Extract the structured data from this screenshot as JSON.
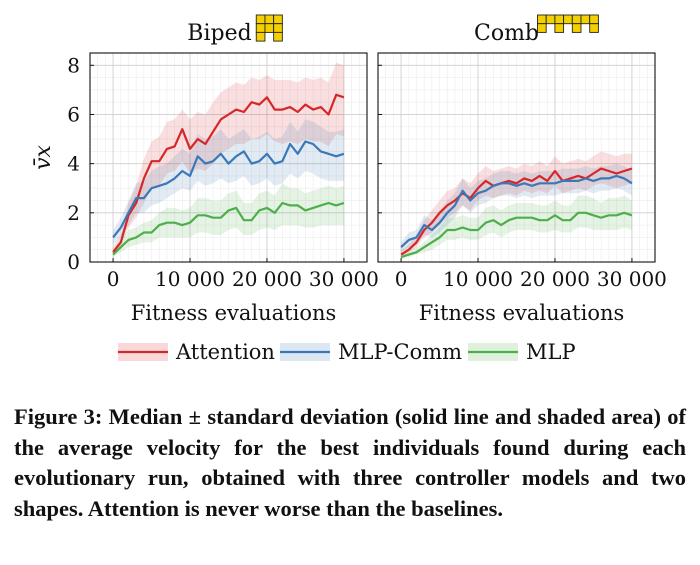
{
  "chart_data": [
    {
      "type": "line",
      "title": "Biped",
      "xlabel": "Fitness evaluations",
      "ylabel": "v̄x",
      "xlim": [
        -3000,
        33000
      ],
      "ylim": [
        0,
        8.5
      ],
      "x_ticks": [
        0,
        10000,
        20000,
        30000
      ],
      "x_tick_labels": [
        "0",
        "10 000",
        "20 000",
        "30 000"
      ],
      "y_ticks": [
        0,
        2,
        4,
        6,
        8
      ],
      "y_tick_labels": [
        "0",
        "2",
        "4",
        "6",
        "8"
      ],
      "grid": true,
      "shape": {
        "rows": [
          [
            1,
            1,
            1
          ],
          [
            1,
            1,
            1
          ],
          [
            1,
            0,
            1
          ]
        ]
      },
      "x": [
        0,
        1000,
        2000,
        3000,
        4000,
        5000,
        6000,
        7000,
        8000,
        9000,
        10000,
        11000,
        12000,
        13000,
        14000,
        15000,
        16000,
        17000,
        18000,
        19000,
        20000,
        21000,
        22000,
        23000,
        24000,
        25000,
        26000,
        27000,
        28000,
        29000,
        30000
      ],
      "series": [
        {
          "name": "Attention",
          "color": "#d62728",
          "median": [
            0.4,
            0.8,
            1.9,
            2.4,
            3.4,
            4.1,
            4.1,
            4.6,
            4.7,
            5.4,
            4.6,
            5.0,
            4.8,
            5.3,
            5.8,
            6.0,
            6.2,
            6.1,
            6.5,
            6.4,
            6.7,
            6.2,
            6.2,
            6.3,
            6.1,
            6.4,
            6.2,
            6.3,
            6.0,
            6.8,
            6.7
          ],
          "lower": [
            0.3,
            0.6,
            1.4,
            1.8,
            2.4,
            3.0,
            3.1,
            3.6,
            3.7,
            4.1,
            3.6,
            3.8,
            3.7,
            4.0,
            4.4,
            4.6,
            4.8,
            4.8,
            5.0,
            5.0,
            5.2,
            4.9,
            4.8,
            4.9,
            4.8,
            5.0,
            4.9,
            4.9,
            4.7,
            5.2,
            5.1
          ],
          "upper": [
            0.6,
            1.1,
            2.4,
            3.1,
            4.2,
            4.9,
            5.1,
            5.7,
            5.8,
            6.2,
            5.8,
            6.1,
            6.0,
            6.5,
            6.9,
            7.1,
            7.3,
            7.2,
            7.5,
            7.4,
            7.6,
            7.4,
            7.4,
            7.4,
            7.3,
            7.5,
            7.4,
            7.5,
            7.3,
            8.1,
            8.0
          ]
        },
        {
          "name": "MLP-Comm",
          "color": "#3a79b8",
          "median": [
            1.0,
            1.4,
            2.0,
            2.6,
            2.6,
            3.0,
            3.1,
            3.2,
            3.4,
            3.7,
            3.5,
            4.3,
            4.0,
            4.1,
            4.4,
            4.0,
            4.3,
            4.5,
            4.0,
            4.1,
            4.4,
            4.0,
            4.1,
            4.8,
            4.4,
            4.9,
            4.8,
            4.5,
            4.4,
            4.3,
            4.4
          ],
          "lower": [
            0.7,
            1.0,
            1.5,
            2.0,
            2.0,
            2.3,
            2.4,
            2.6,
            2.8,
            3.0,
            2.9,
            3.3,
            3.1,
            3.2,
            3.4,
            3.2,
            3.3,
            3.5,
            3.1,
            3.2,
            3.4,
            3.1,
            3.2,
            3.6,
            3.4,
            3.7,
            3.6,
            3.4,
            3.3,
            3.3,
            3.3
          ],
          "upper": [
            1.3,
            1.8,
            2.5,
            3.2,
            3.3,
            3.7,
            3.9,
            4.0,
            4.3,
            4.6,
            4.4,
            5.2,
            5.0,
            5.1,
            5.4,
            5.0,
            5.2,
            5.4,
            5.0,
            5.1,
            5.3,
            5.0,
            5.1,
            5.7,
            5.3,
            5.8,
            5.7,
            5.5,
            5.3,
            5.3,
            5.4
          ]
        },
        {
          "name": "MLP",
          "color": "#4daf4a",
          "median": [
            0.3,
            0.6,
            0.9,
            1.0,
            1.2,
            1.2,
            1.5,
            1.6,
            1.6,
            1.5,
            1.6,
            1.9,
            1.9,
            1.8,
            1.8,
            2.1,
            2.2,
            1.7,
            1.7,
            2.1,
            2.2,
            2.0,
            2.4,
            2.3,
            2.3,
            2.1,
            2.2,
            2.3,
            2.4,
            2.3,
            2.4
          ],
          "lower": [
            0.2,
            0.4,
            0.6,
            0.7,
            0.8,
            0.8,
            1.0,
            1.0,
            1.0,
            1.0,
            1.0,
            1.2,
            1.2,
            1.1,
            1.1,
            1.3,
            1.4,
            1.1,
            1.1,
            1.3,
            1.4,
            1.3,
            1.5,
            1.5,
            1.5,
            1.4,
            1.4,
            1.5,
            1.5,
            1.5,
            1.5
          ],
          "upper": [
            0.5,
            0.9,
            1.3,
            1.4,
            1.6,
            1.7,
            2.0,
            2.2,
            2.2,
            2.1,
            2.2,
            2.6,
            2.6,
            2.5,
            2.5,
            2.8,
            2.9,
            2.4,
            2.4,
            2.8,
            2.9,
            2.7,
            3.2,
            3.0,
            3.0,
            2.8,
            2.9,
            3.0,
            3.1,
            3.0,
            3.1
          ]
        }
      ]
    },
    {
      "type": "line",
      "title": "Comb",
      "xlabel": "Fitness evaluations",
      "ylabel": "",
      "xlim": [
        -3000,
        33000
      ],
      "ylim": [
        0,
        8.5
      ],
      "x_ticks": [
        0,
        10000,
        20000,
        30000
      ],
      "x_tick_labels": [
        "0",
        "10 000",
        "20 000",
        "30 000"
      ],
      "y_ticks": [
        0,
        2,
        4,
        6,
        8
      ],
      "grid": true,
      "shape": {
        "rows": [
          [
            1,
            1,
            1,
            1,
            1,
            1,
            1
          ],
          [
            1,
            0,
            1,
            0,
            1,
            0,
            1
          ]
        ]
      },
      "x": [
        0,
        1000,
        2000,
        3000,
        4000,
        5000,
        6000,
        7000,
        8000,
        9000,
        10000,
        11000,
        12000,
        13000,
        14000,
        15000,
        16000,
        17000,
        18000,
        19000,
        20000,
        21000,
        22000,
        23000,
        24000,
        25000,
        26000,
        27000,
        28000,
        29000,
        30000
      ],
      "series": [
        {
          "name": "Attention",
          "color": "#d62728",
          "median": [
            0.3,
            0.5,
            0.8,
            1.3,
            1.6,
            2.0,
            2.3,
            2.5,
            2.8,
            2.6,
            3.0,
            3.3,
            3.1,
            3.2,
            3.3,
            3.2,
            3.4,
            3.3,
            3.5,
            3.3,
            3.7,
            3.3,
            3.4,
            3.5,
            3.4,
            3.6,
            3.8,
            3.7,
            3.6,
            3.7,
            3.8
          ],
          "lower": [
            0.2,
            0.4,
            0.6,
            1.0,
            1.2,
            1.5,
            1.8,
            2.0,
            2.3,
            2.1,
            2.5,
            2.7,
            2.6,
            2.7,
            2.8,
            2.7,
            2.9,
            2.8,
            2.9,
            2.8,
            3.1,
            2.8,
            2.9,
            3.0,
            2.9,
            3.1,
            3.2,
            3.1,
            3.0,
            3.1,
            3.2
          ],
          "upper": [
            0.5,
            0.7,
            1.1,
            1.7,
            2.1,
            2.5,
            2.9,
            3.0,
            3.4,
            3.2,
            3.6,
            3.9,
            3.7,
            3.8,
            3.9,
            3.8,
            4.0,
            3.9,
            4.1,
            3.9,
            4.3,
            4.0,
            4.1,
            4.2,
            4.1,
            4.3,
            4.5,
            4.4,
            4.3,
            4.4,
            4.4
          ]
        },
        {
          "name": "MLP-Comm",
          "color": "#3a79b8",
          "median": [
            0.6,
            0.9,
            1.0,
            1.5,
            1.3,
            1.6,
            2.0,
            2.3,
            2.9,
            2.5,
            2.8,
            2.9,
            3.1,
            3.2,
            3.2,
            3.1,
            3.2,
            3.1,
            3.2,
            3.2,
            3.2,
            3.3,
            3.3,
            3.3,
            3.4,
            3.3,
            3.4,
            3.4,
            3.5,
            3.4,
            3.2
          ],
          "lower": [
            0.4,
            0.6,
            0.7,
            1.1,
            1.0,
            1.2,
            1.5,
            1.8,
            2.3,
            2.0,
            2.3,
            2.4,
            2.6,
            2.7,
            2.7,
            2.6,
            2.7,
            2.6,
            2.7,
            2.7,
            2.7,
            2.8,
            2.8,
            2.8,
            2.9,
            2.8,
            2.9,
            2.9,
            3.0,
            2.9,
            2.7
          ],
          "upper": [
            0.8,
            1.2,
            1.3,
            1.9,
            1.7,
            2.0,
            2.5,
            2.8,
            3.4,
            3.0,
            3.3,
            3.4,
            3.6,
            3.7,
            3.7,
            3.6,
            3.7,
            3.6,
            3.7,
            3.7,
            3.7,
            3.8,
            3.8,
            3.8,
            3.9,
            3.8,
            3.9,
            3.9,
            4.0,
            3.9,
            3.7
          ]
        },
        {
          "name": "MLP",
          "color": "#4daf4a",
          "median": [
            0.2,
            0.3,
            0.4,
            0.6,
            0.8,
            1.0,
            1.3,
            1.3,
            1.4,
            1.3,
            1.3,
            1.6,
            1.7,
            1.5,
            1.7,
            1.8,
            1.8,
            1.8,
            1.7,
            1.7,
            1.9,
            1.7,
            1.7,
            2.0,
            2.0,
            1.9,
            1.8,
            1.9,
            1.9,
            2.0,
            1.9
          ],
          "lower": [
            0.1,
            0.2,
            0.3,
            0.4,
            0.5,
            0.7,
            0.9,
            0.9,
            1.0,
            0.9,
            0.9,
            1.1,
            1.2,
            1.0,
            1.2,
            1.3,
            1.3,
            1.3,
            1.2,
            1.2,
            1.3,
            1.2,
            1.2,
            1.4,
            1.4,
            1.3,
            1.3,
            1.3,
            1.3,
            1.4,
            1.3
          ],
          "upper": [
            0.3,
            0.5,
            0.6,
            0.8,
            1.1,
            1.4,
            1.8,
            1.8,
            1.9,
            1.8,
            1.8,
            2.2,
            2.3,
            2.1,
            2.3,
            2.4,
            2.4,
            2.4,
            2.3,
            2.3,
            2.5,
            2.3,
            2.3,
            2.7,
            2.7,
            2.6,
            2.4,
            2.6,
            2.6,
            2.7,
            2.5
          ]
        }
      ]
    }
  ],
  "legend": {
    "placement": "bottom",
    "entries": [
      "Attention",
      "MLP-Comm",
      "MLP"
    ]
  },
  "caption": "Figure 3: Median ± standard deviation (solid line and shaded area) of the average velocity for the best individuals found during each evolutionary run, obtained with three controller models and two shapes. Attention is never worse than the baselines."
}
